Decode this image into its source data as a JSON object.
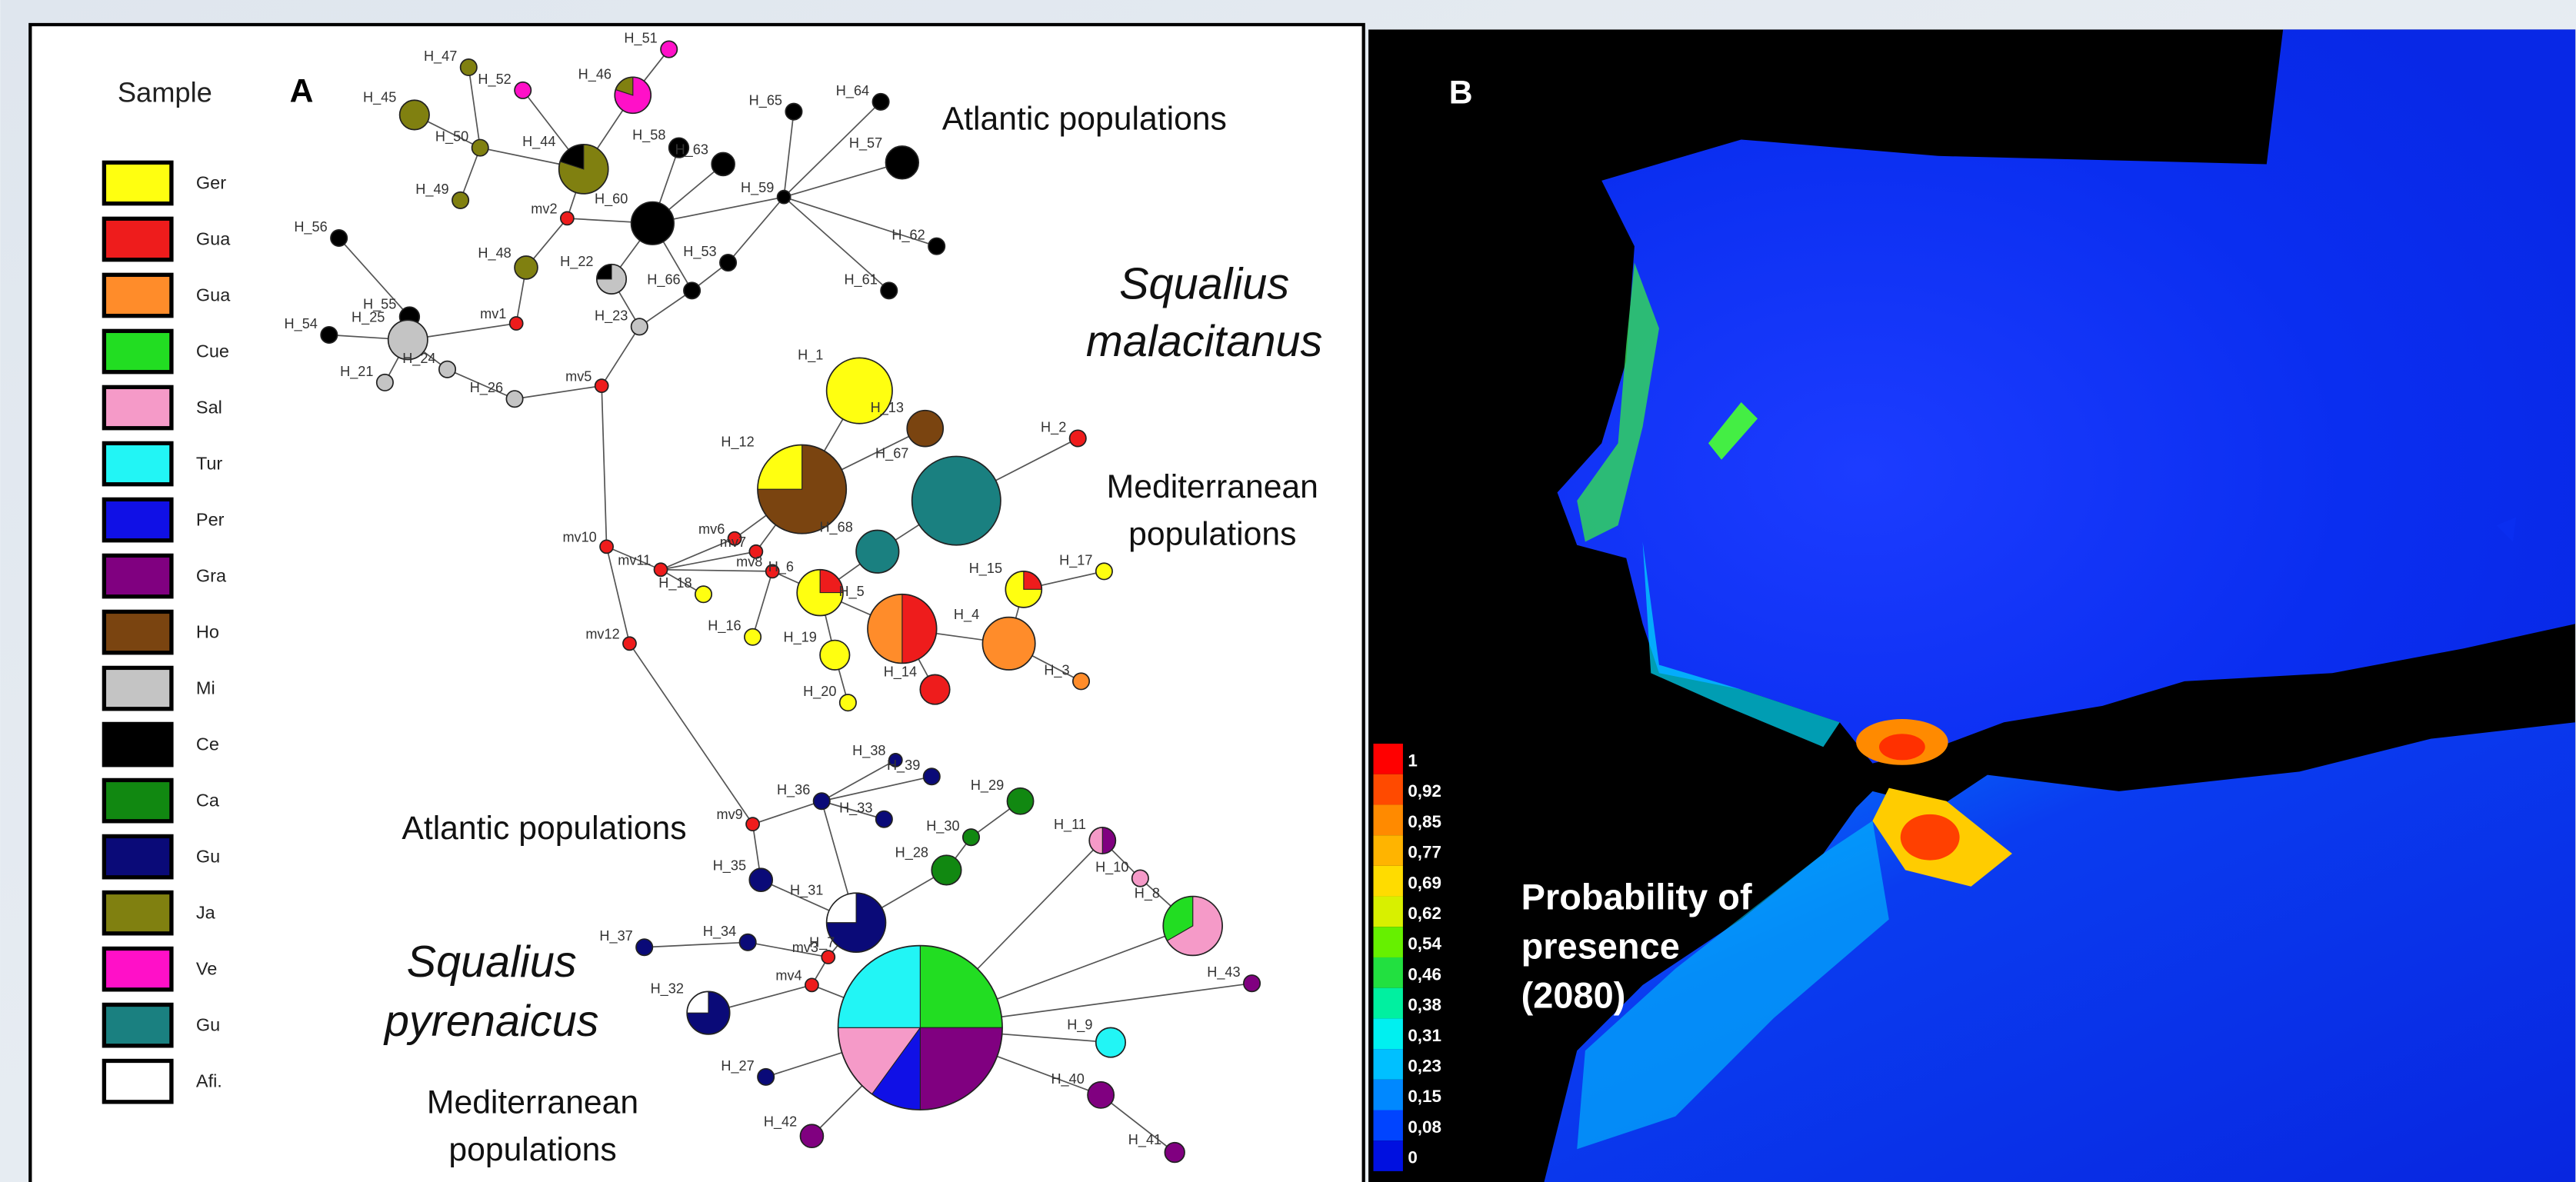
{
  "panel_a": {
    "label": "A",
    "legend_title": "Sample",
    "legend": [
      "Ger",
      "Gua",
      "Gua",
      "Cue",
      "Sal",
      "Tur",
      "Per",
      "Gra",
      "Ho",
      "Mi",
      "Ce",
      "Ca",
      "Gu",
      "Ja",
      "Ve",
      "Gu",
      "Afi."
    ],
    "nodes": [
      "H_47",
      "H_45",
      "H_52",
      "H_51",
      "H_46",
      "H_50",
      "H_44",
      "H_49",
      "mv2",
      "H_58",
      "H_63",
      "H_65",
      "H_64",
      "H_57",
      "H_59",
      "H_60",
      "H_62",
      "H_61",
      "H_53",
      "H_66",
      "H_48",
      "H_22",
      "mv1",
      "H_23",
      "H_56",
      "H_55",
      "H_54",
      "H_25",
      "H_24",
      "H_21",
      "H_26",
      "mv5",
      "H_1",
      "H_13",
      "H_2",
      "H_12",
      "H_67",
      "H_68",
      "mv10",
      "mv6",
      "mv7",
      "mv11",
      "mv8",
      "H_6",
      "H_15",
      "H_17",
      "H_18",
      "H_16",
      "H_5",
      "H_4",
      "H_19",
      "mv12",
      "H_20",
      "H_14",
      "H_3",
      "H_38",
      "H_39",
      "H_36",
      "H_29",
      "H_33",
      "H_30",
      "mv9",
      "H_11",
      "H_28",
      "H_35",
      "H_10",
      "H_31",
      "H_8",
      "H_37",
      "H_34",
      "mv3",
      "mv4",
      "H_43",
      "H_32",
      "H_7",
      "H_9",
      "H_27",
      "H_40",
      "H_42",
      "H_41"
    ],
    "annotations": {
      "atlantic_north": "Atlantic populations",
      "malacitanus": [
        "Squalius",
        "malacitanus"
      ],
      "mediterranean_north": [
        "Mediterranean",
        "populations"
      ],
      "atlantic_south": "Atlantic populations",
      "pyrenaicus": [
        "Squalius",
        "pyrenaicus"
      ],
      "mediterranean_south": [
        "Mediterranean",
        "populations"
      ]
    }
  },
  "panel_b": {
    "label": "B",
    "scale": [
      "1",
      "0,92",
      "0,85",
      "0,77",
      "0,69",
      "0,62",
      "0,54",
      "0,46",
      "0,38",
      "0,31",
      "0,23",
      "0,15",
      "0,08",
      "0"
    ],
    "caption": [
      "Probability of",
      "presence",
      "(2080)"
    ]
  }
}
